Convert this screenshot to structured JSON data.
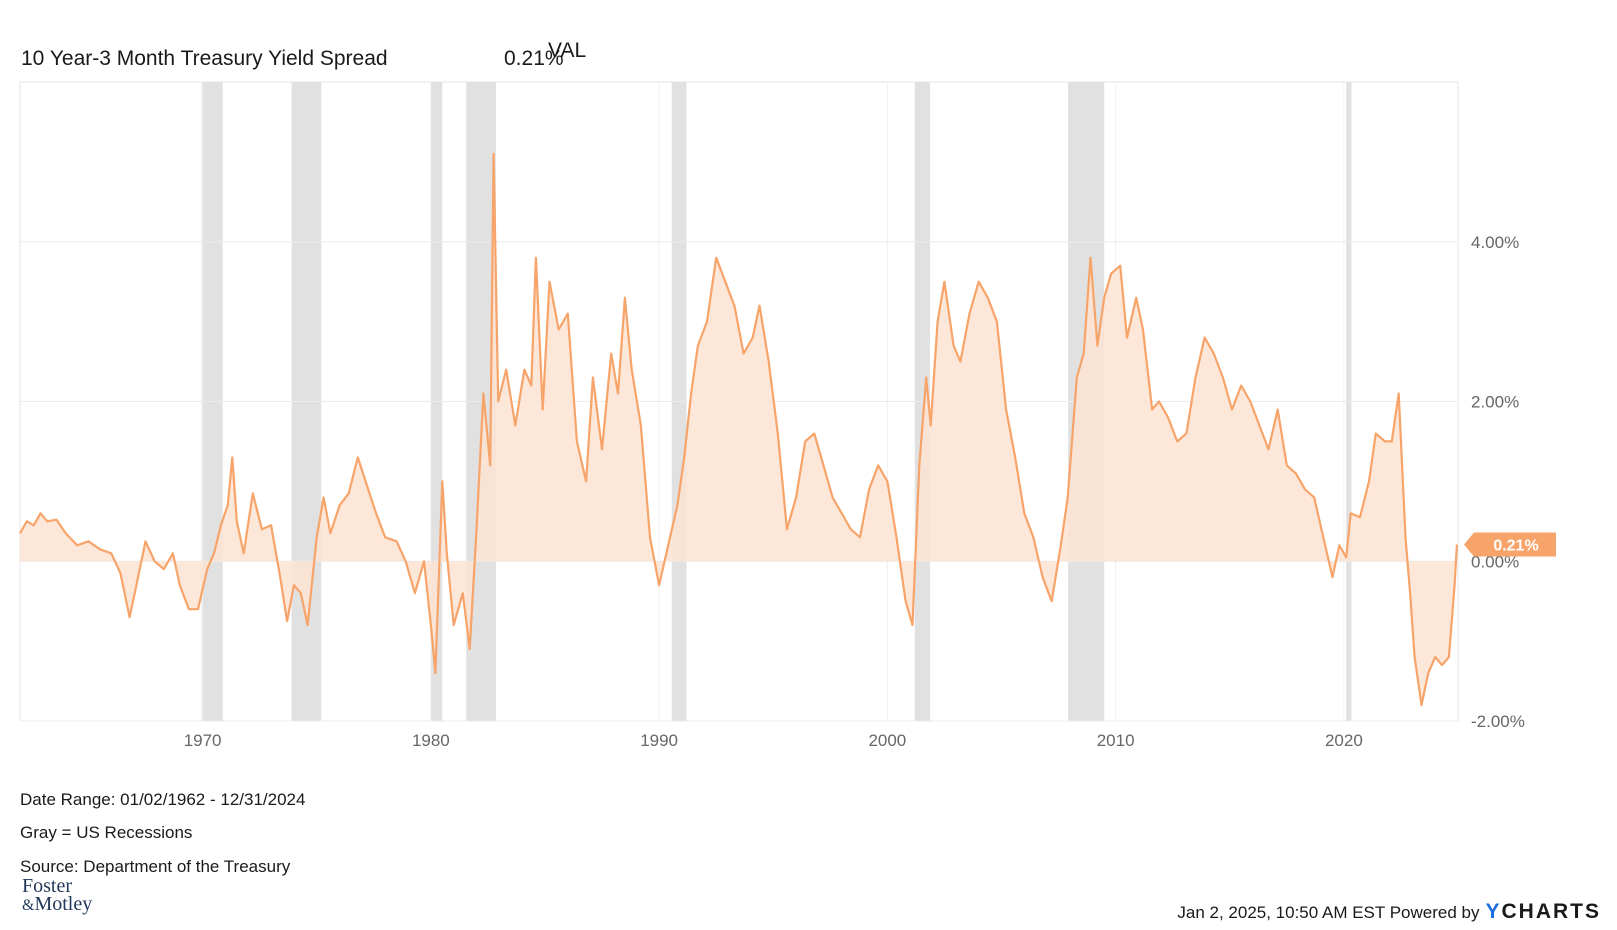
{
  "legend": {
    "value_header": "VAL",
    "series_name": "10 Year-3 Month Treasury Yield Spread",
    "series_value": "0.21%"
  },
  "footer": {
    "date_range": "Date Range: 01/02/1962 - 12/31/2024",
    "gray_note": "Gray = US Recessions",
    "source": "Source: Department of the Treasury",
    "logo_line1": "Foster",
    "logo_line2_amp": "&",
    "logo_line2": "Motley",
    "timestamp": "Jan 2, 2025, 10:50 AM EST Powered by",
    "brand_y": "Y",
    "brand_rest": "CHARTS"
  },
  "chart_data": {
    "type": "area",
    "title": "",
    "xlabel": "",
    "ylabel": "",
    "xlim": [
      1962.0,
      2025.0
    ],
    "ylim": [
      -2.0,
      6.0
    ],
    "x_ticks": [
      1970,
      1980,
      1990,
      2000,
      2010,
      2020
    ],
    "x_tick_labels": [
      "1970",
      "1980",
      "1990",
      "2000",
      "2010",
      "2020"
    ],
    "y_ticks": [
      -2,
      0,
      2,
      4
    ],
    "y_tick_labels": [
      "-2.00%",
      "0.00%",
      "2.00%",
      "4.00%"
    ],
    "grid": true,
    "last_value_label": "0.21%",
    "colors": {
      "line": "#f7a46a",
      "fill": "#fde3d2",
      "recession": "#e1e1e1",
      "badge": "#f7a46a"
    },
    "recessions": [
      [
        1969.95,
        1970.88
      ],
      [
        1973.9,
        1975.2
      ],
      [
        1980.0,
        1980.5
      ],
      [
        1981.55,
        1982.85
      ],
      [
        1990.55,
        1991.2
      ],
      [
        2001.2,
        2001.87
      ],
      [
        2007.92,
        2009.5
      ],
      [
        2020.1,
        2020.33
      ]
    ],
    "series": [
      {
        "values": [
          [
            1962.0,
            0.35
          ],
          [
            1962.3,
            0.5
          ],
          [
            1962.6,
            0.45
          ],
          [
            1962.9,
            0.6
          ],
          [
            1963.2,
            0.5
          ],
          [
            1963.6,
            0.52
          ],
          [
            1964.0,
            0.35
          ],
          [
            1964.5,
            0.2
          ],
          [
            1965.0,
            0.25
          ],
          [
            1965.5,
            0.15
          ],
          [
            1966.0,
            0.1
          ],
          [
            1966.4,
            -0.15
          ],
          [
            1966.8,
            -0.7
          ],
          [
            1967.1,
            -0.3
          ],
          [
            1967.5,
            0.25
          ],
          [
            1967.9,
            0.0
          ],
          [
            1968.3,
            -0.1
          ],
          [
            1968.7,
            0.1
          ],
          [
            1969.0,
            -0.3
          ],
          [
            1969.4,
            -0.6
          ],
          [
            1969.8,
            -0.6
          ],
          [
            1970.2,
            -0.1
          ],
          [
            1970.5,
            0.1
          ],
          [
            1970.8,
            0.45
          ],
          [
            1971.1,
            0.7
          ],
          [
            1971.3,
            1.3
          ],
          [
            1971.5,
            0.5
          ],
          [
            1971.8,
            0.1
          ],
          [
            1972.2,
            0.85
          ],
          [
            1972.6,
            0.4
          ],
          [
            1973.0,
            0.45
          ],
          [
            1973.4,
            -0.2
          ],
          [
            1973.7,
            -0.75
          ],
          [
            1974.0,
            -0.3
          ],
          [
            1974.3,
            -0.4
          ],
          [
            1974.6,
            -0.8
          ],
          [
            1975.0,
            0.3
          ],
          [
            1975.3,
            0.8
          ],
          [
            1975.6,
            0.35
          ],
          [
            1976.0,
            0.7
          ],
          [
            1976.4,
            0.85
          ],
          [
            1976.8,
            1.3
          ],
          [
            1977.2,
            0.95
          ],
          [
            1977.6,
            0.6
          ],
          [
            1978.0,
            0.3
          ],
          [
            1978.5,
            0.25
          ],
          [
            1978.9,
            0.0
          ],
          [
            1979.3,
            -0.4
          ],
          [
            1979.7,
            0.0
          ],
          [
            1980.0,
            -0.8
          ],
          [
            1980.2,
            -1.4
          ],
          [
            1980.5,
            1.0
          ],
          [
            1980.7,
            0.1
          ],
          [
            1981.0,
            -0.8
          ],
          [
            1981.4,
            -0.4
          ],
          [
            1981.7,
            -1.1
          ],
          [
            1982.0,
            0.4
          ],
          [
            1982.3,
            2.1
          ],
          [
            1982.6,
            1.2
          ],
          [
            1982.75,
            5.1
          ],
          [
            1982.95,
            2.0
          ],
          [
            1983.3,
            2.4
          ],
          [
            1983.7,
            1.7
          ],
          [
            1984.1,
            2.4
          ],
          [
            1984.4,
            2.2
          ],
          [
            1984.6,
            3.8
          ],
          [
            1984.9,
            1.9
          ],
          [
            1985.2,
            3.5
          ],
          [
            1985.6,
            2.9
          ],
          [
            1986.0,
            3.1
          ],
          [
            1986.4,
            1.5
          ],
          [
            1986.8,
            1.0
          ],
          [
            1987.1,
            2.3
          ],
          [
            1987.5,
            1.4
          ],
          [
            1987.9,
            2.6
          ],
          [
            1988.2,
            2.1
          ],
          [
            1988.5,
            3.3
          ],
          [
            1988.8,
            2.4
          ],
          [
            1989.2,
            1.7
          ],
          [
            1989.6,
            0.3
          ],
          [
            1990.0,
            -0.3
          ],
          [
            1990.4,
            0.2
          ],
          [
            1990.8,
            0.7
          ],
          [
            1991.1,
            1.3
          ],
          [
            1991.4,
            2.1
          ],
          [
            1991.7,
            2.7
          ],
          [
            1992.1,
            3.0
          ],
          [
            1992.5,
            3.8
          ],
          [
            1992.9,
            3.5
          ],
          [
            1993.3,
            3.2
          ],
          [
            1993.7,
            2.6
          ],
          [
            1994.1,
            2.8
          ],
          [
            1994.4,
            3.2
          ],
          [
            1994.8,
            2.5
          ],
          [
            1995.2,
            1.6
          ],
          [
            1995.6,
            0.4
          ],
          [
            1996.0,
            0.8
          ],
          [
            1996.4,
            1.5
          ],
          [
            1996.8,
            1.6
          ],
          [
            1997.2,
            1.2
          ],
          [
            1997.6,
            0.8
          ],
          [
            1998.0,
            0.6
          ],
          [
            1998.4,
            0.4
          ],
          [
            1998.8,
            0.3
          ],
          [
            1999.2,
            0.9
          ],
          [
            1999.6,
            1.2
          ],
          [
            2000.0,
            1.0
          ],
          [
            2000.4,
            0.3
          ],
          [
            2000.8,
            -0.5
          ],
          [
            2001.1,
            -0.8
          ],
          [
            2001.4,
            1.2
          ],
          [
            2001.7,
            2.3
          ],
          [
            2001.9,
            1.7
          ],
          [
            2002.2,
            3.0
          ],
          [
            2002.5,
            3.5
          ],
          [
            2002.9,
            2.7
          ],
          [
            2003.2,
            2.5
          ],
          [
            2003.6,
            3.1
          ],
          [
            2004.0,
            3.5
          ],
          [
            2004.4,
            3.3
          ],
          [
            2004.8,
            3.0
          ],
          [
            2005.2,
            1.9
          ],
          [
            2005.6,
            1.3
          ],
          [
            2006.0,
            0.6
          ],
          [
            2006.4,
            0.3
          ],
          [
            2006.8,
            -0.2
          ],
          [
            2007.2,
            -0.5
          ],
          [
            2007.6,
            0.2
          ],
          [
            2007.9,
            0.8
          ],
          [
            2008.3,
            2.3
          ],
          [
            2008.6,
            2.6
          ],
          [
            2008.9,
            3.8
          ],
          [
            2009.2,
            2.7
          ],
          [
            2009.5,
            3.3
          ],
          [
            2009.8,
            3.6
          ],
          [
            2010.2,
            3.7
          ],
          [
            2010.5,
            2.8
          ],
          [
            2010.9,
            3.3
          ],
          [
            2011.2,
            2.9
          ],
          [
            2011.6,
            1.9
          ],
          [
            2011.9,
            2.0
          ],
          [
            2012.3,
            1.8
          ],
          [
            2012.7,
            1.5
          ],
          [
            2013.1,
            1.6
          ],
          [
            2013.5,
            2.3
          ],
          [
            2013.9,
            2.8
          ],
          [
            2014.3,
            2.6
          ],
          [
            2014.7,
            2.3
          ],
          [
            2015.1,
            1.9
          ],
          [
            2015.5,
            2.2
          ],
          [
            2015.9,
            2.0
          ],
          [
            2016.3,
            1.7
          ],
          [
            2016.7,
            1.4
          ],
          [
            2017.1,
            1.9
          ],
          [
            2017.5,
            1.2
          ],
          [
            2017.9,
            1.1
          ],
          [
            2018.3,
            0.9
          ],
          [
            2018.7,
            0.8
          ],
          [
            2019.1,
            0.3
          ],
          [
            2019.5,
            -0.2
          ],
          [
            2019.8,
            0.2
          ],
          [
            2020.1,
            0.05
          ],
          [
            2020.3,
            0.6
          ],
          [
            2020.7,
            0.55
          ],
          [
            2021.1,
            1.0
          ],
          [
            2021.4,
            1.6
          ],
          [
            2021.8,
            1.5
          ],
          [
            2022.1,
            1.5
          ],
          [
            2022.4,
            2.1
          ],
          [
            2022.7,
            0.3
          ],
          [
            2022.9,
            -0.4
          ],
          [
            2023.1,
            -1.2
          ],
          [
            2023.4,
            -1.8
          ],
          [
            2023.7,
            -1.4
          ],
          [
            2024.0,
            -1.2
          ],
          [
            2024.3,
            -1.3
          ],
          [
            2024.6,
            -1.2
          ],
          [
            2024.85,
            -0.3
          ],
          [
            2024.95,
            0.21
          ]
        ]
      }
    ]
  }
}
